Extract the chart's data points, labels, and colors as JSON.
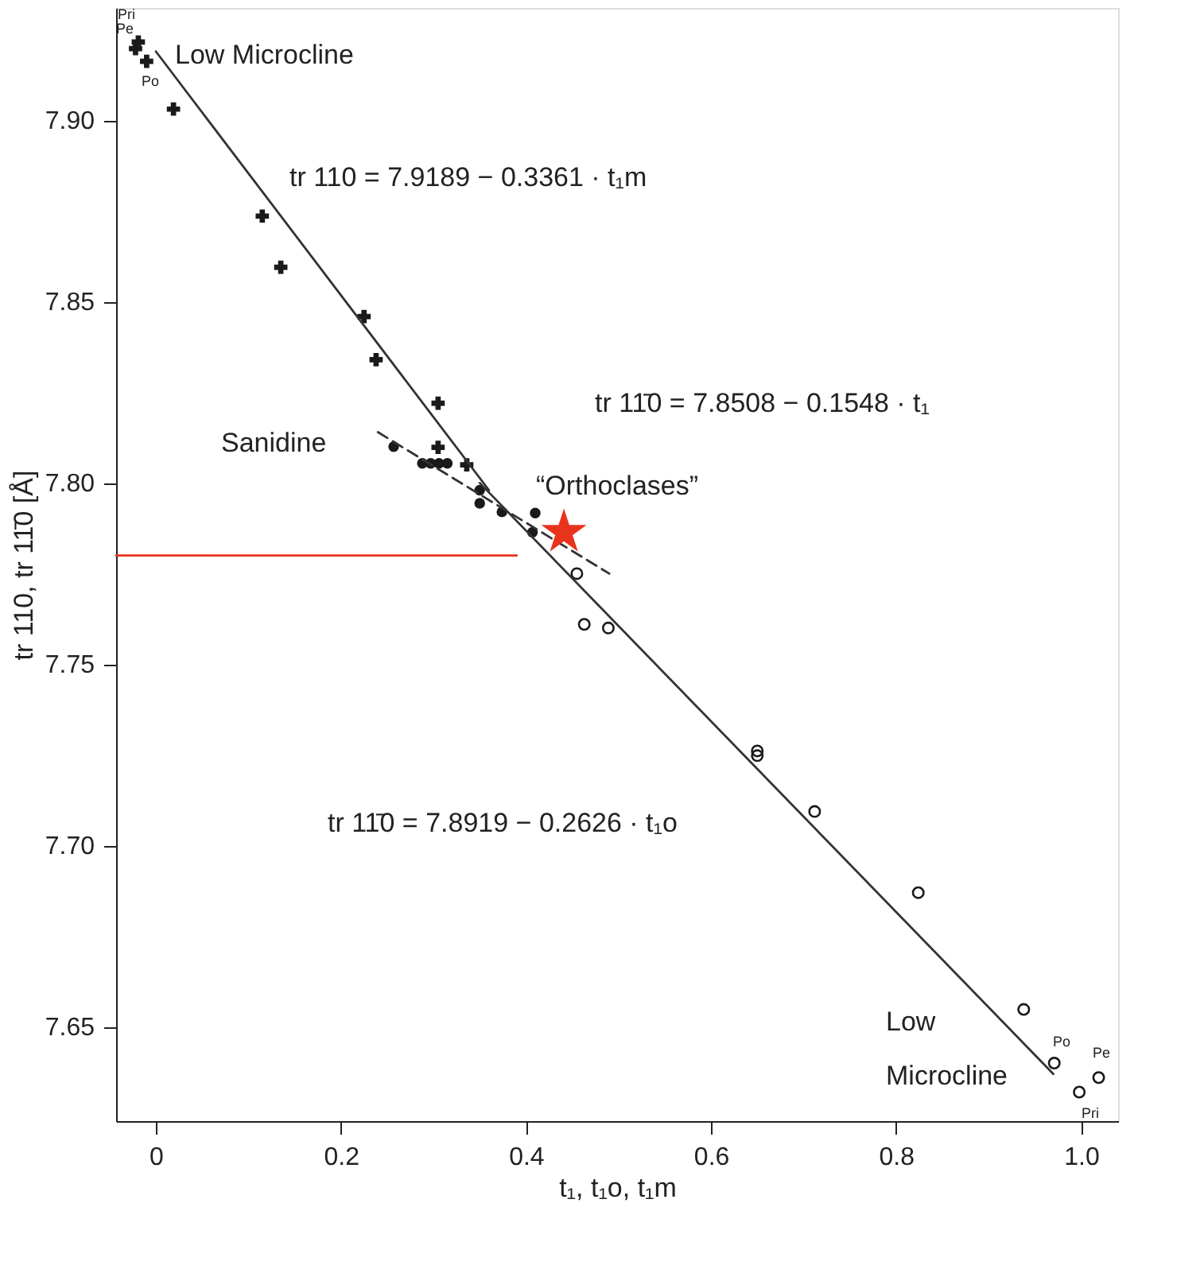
{
  "chart_data": {
    "type": "scatter",
    "xlabel": "t₁, t₁o, t₁m",
    "ylabel": "tr 110, tr 11̄0 [Å]",
    "xlim": [
      -0.043,
      1.04
    ],
    "ylim": [
      7.624,
      7.931
    ],
    "xticks": [
      0,
      0.2,
      0.4,
      0.6,
      0.8,
      {
        "value": 1.0,
        "label": "1.0"
      }
    ],
    "yticks": [
      {
        "value": 7.65,
        "label": "7.65"
      },
      {
        "value": 7.7,
        "label": "7.70"
      },
      {
        "value": 7.75,
        "label": "7.75"
      },
      {
        "value": 7.8,
        "label": "7.80"
      },
      {
        "value": 7.85,
        "label": "7.85"
      },
      {
        "value": 7.9,
        "label": "7.90"
      }
    ],
    "grid": false,
    "series": [
      {
        "marker": "cross",
        "color": "#1a1a1a",
        "x": [
          -0.019,
          -0.022,
          -0.01,
          0.019,
          0.115,
          0.135,
          0.225,
          0.238,
          0.305,
          0.305,
          0.336
        ],
        "values": [
          7.9216,
          7.9198,
          7.9163,
          7.9031,
          7.8736,
          7.8595,
          7.8459,
          7.834,
          7.822,
          7.8098,
          7.805
        ]
      },
      {
        "marker": "circle",
        "color": "#1a1a1a",
        "x": [
          0.257,
          0.288,
          0.297,
          0.306,
          0.315,
          0.35,
          0.35,
          0.374,
          0.41,
          0.407
        ],
        "values": [
          7.81,
          7.8054,
          7.8054,
          7.8054,
          7.8054,
          7.798,
          7.7944,
          7.792,
          7.7917,
          7.7864
        ]
      },
      {
        "marker": "circle",
        "color": "#1a1a1a",
        "x": [
          0.455,
          0.463,
          0.489,
          0.65,
          0.65,
          0.712,
          0.824,
          0.938,
          0.971,
          0.998,
          1.019
        ],
        "values": [
          7.775,
          7.761,
          7.76,
          7.7261,
          7.7248,
          7.7094,
          7.687,
          7.6548,
          7.64,
          7.632,
          7.636
        ]
      },
      {
        "type": "line",
        "line_style": "solid",
        "color": "#333333",
        "x": [
          0,
          0.36
        ],
        "values": [
          7.919,
          7.798
        ]
      },
      {
        "type": "line",
        "line_style": "dashed",
        "color": "#333333",
        "x": [
          0.24,
          0.49
        ],
        "values": [
          7.814,
          7.775
        ]
      },
      {
        "type": "line",
        "line_style": "solid",
        "color": "#333333",
        "x": [
          0.35,
          0.97
        ],
        "values": [
          7.8,
          7.637
        ]
      },
      {
        "type": "line",
        "line_style": "solid",
        "color": "#e8341c",
        "x": [
          -0.043,
          0.39
        ],
        "values": [
          7.78,
          7.78
        ]
      },
      {
        "marker": "star",
        "color": "#e8341c",
        "x": [
          0.441
        ],
        "values": [
          7.7864
        ]
      }
    ],
    "annotations": [
      "Low Microcline",
      "Pri",
      "Pe",
      "Po",
      "tr 110 = 7.9189 − 0.3361 · t₁m",
      "tr 11̄0 = 7.8508 − 0.1548 · t₁",
      "Sanidine",
      "“Orthoclases”",
      "tr 11̄0 = 7.8919 − 0.2626 · t₁o",
      "Low",
      "Microcline",
      "Po",
      "Pe",
      "Pri"
    ]
  }
}
